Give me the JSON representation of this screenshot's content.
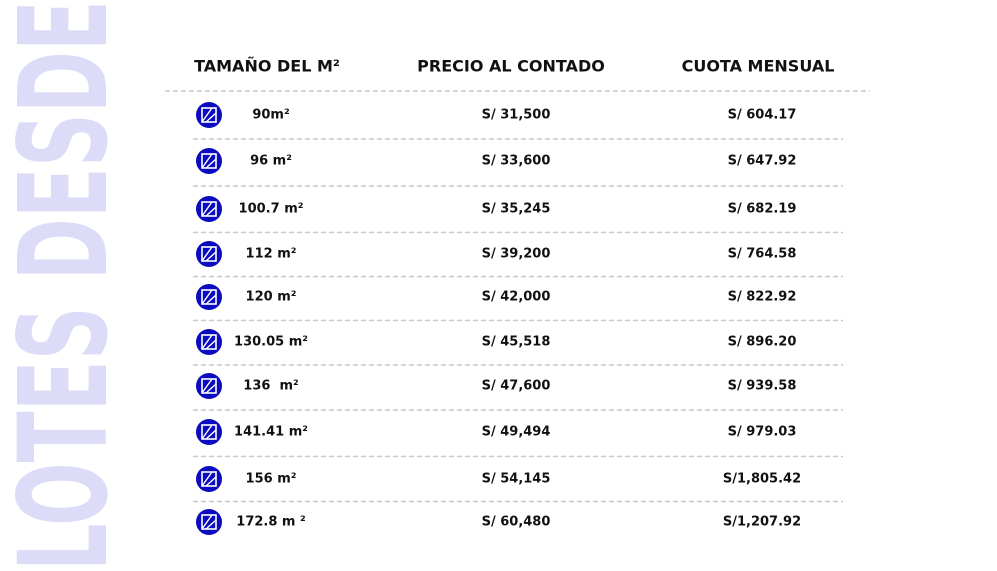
{
  "side_title": "LOTES DESDE",
  "table": {
    "headers": [
      "TAMAÑO DEL M²",
      "PRECIO AL CONTADO",
      "CUOTA MENSUAL"
    ],
    "rows": [
      [
        "90m²",
        "S/ 31,500",
        "S/ 604.17"
      ],
      [
        "96 m²",
        "S/ 33,600",
        "S/ 647.92"
      ],
      [
        "100.7 m²",
        "S/ 35,245",
        "S/ 682.19"
      ],
      [
        "112 m²",
        "S/ 39,200",
        "S/ 764.58"
      ],
      [
        "120 m²",
        "S/ 42,000",
        "S/ 822.92"
      ],
      [
        "130.05 m²",
        "S/ 45,518",
        "S/ 896.20"
      ],
      [
        "136  m²",
        "S/ 47,600",
        "S/ 939.58"
      ],
      [
        "141.41 m²",
        "S/ 49,494",
        "S/ 979.03"
      ],
      [
        "156 m²",
        "S/ 54,145",
        "S/1,805.42"
      ],
      [
        "172.8 m ²",
        "S/ 60,480",
        "S/1,207.92"
      ]
    ]
  }
}
